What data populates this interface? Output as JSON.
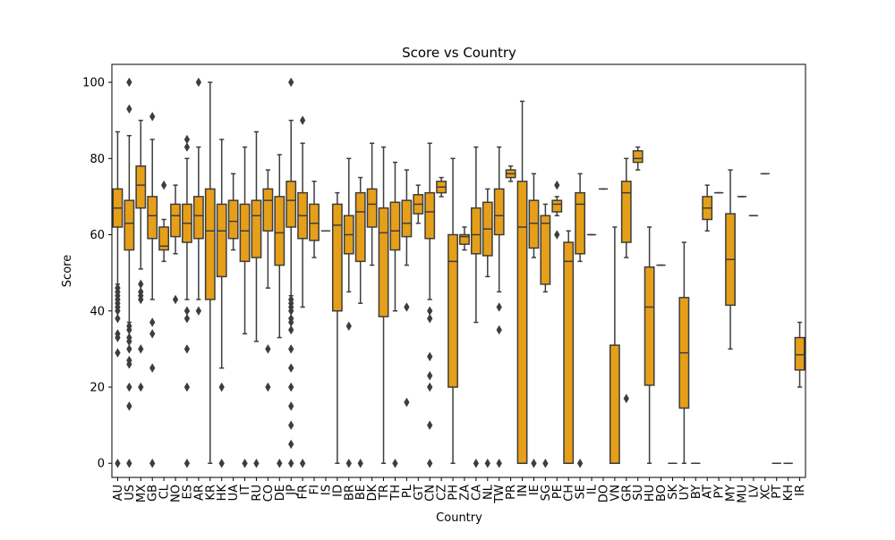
{
  "chart_data": {
    "type": "box",
    "title": "Score vs Country",
    "xlabel": "Country",
    "ylabel": "Score",
    "ylim": [
      -3.7,
      104.7
    ],
    "yticks": [
      0,
      20,
      40,
      60,
      80,
      100
    ],
    "grid": false,
    "colors": {
      "box_fill": "#E69F18",
      "line": "#3d3d3d",
      "axis": "#000000"
    },
    "categories": [
      {
        "label": "AU",
        "q1": 62,
        "median": 67,
        "q3": 72,
        "wlo": 47,
        "whi": 87,
        "outliers": [
          46,
          45,
          44,
          43,
          42,
          41,
          40,
          38,
          34,
          33,
          29,
          0
        ]
      },
      {
        "label": "US",
        "q1": 56,
        "median": 63,
        "q3": 69,
        "wlo": 37,
        "whi": 86,
        "outliers": [
          100,
          93,
          36,
          35,
          33,
          32,
          30,
          27,
          26,
          20,
          15,
          0
        ]
      },
      {
        "label": "MX",
        "q1": 67,
        "median": 73,
        "q3": 78,
        "wlo": 51,
        "whi": 90,
        "outliers": [
          47,
          45,
          44,
          43,
          30,
          20
        ]
      },
      {
        "label": "GB",
        "q1": 59,
        "median": 65,
        "q3": 70,
        "wlo": 43,
        "whi": 85,
        "outliers": [
          91,
          37,
          34,
          25,
          0
        ]
      },
      {
        "label": "CL",
        "q1": 56,
        "median": 57,
        "q3": 62,
        "wlo": 53,
        "whi": 64,
        "outliers": [
          73
        ]
      },
      {
        "label": "NO",
        "q1": 59.5,
        "median": 65,
        "q3": 68,
        "wlo": 55,
        "whi": 73,
        "outliers": [
          43
        ]
      },
      {
        "label": "ES",
        "q1": 58,
        "median": 63,
        "q3": 68,
        "wlo": 43,
        "whi": 80,
        "outliers": [
          85,
          83,
          40,
          38,
          30,
          20,
          0
        ]
      },
      {
        "label": "AR",
        "q1": 59,
        "median": 65,
        "q3": 70,
        "wlo": 43,
        "whi": 83,
        "outliers": [
          100,
          40
        ]
      },
      {
        "label": "KR",
        "q1": 43,
        "median": 61,
        "q3": 72,
        "wlo": 0,
        "whi": 100,
        "outliers": []
      },
      {
        "label": "HK",
        "q1": 49,
        "median": 61,
        "q3": 68,
        "wlo": 25,
        "whi": 85,
        "outliers": [
          20,
          0
        ]
      },
      {
        "label": "UA",
        "q1": 59,
        "median": 63.5,
        "q3": 69,
        "wlo": 56,
        "whi": 76,
        "outliers": []
      },
      {
        "label": "IT",
        "q1": 53,
        "median": 61,
        "q3": 68,
        "wlo": 34,
        "whi": 83,
        "outliers": [
          0
        ]
      },
      {
        "label": "RU",
        "q1": 54,
        "median": 65,
        "q3": 69,
        "wlo": 32,
        "whi": 87,
        "outliers": [
          0
        ]
      },
      {
        "label": "CO",
        "q1": 61,
        "median": 69,
        "q3": 72,
        "wlo": 46,
        "whi": 77,
        "outliers": [
          30,
          20
        ]
      },
      {
        "label": "DE",
        "q1": 52,
        "median": 60.5,
        "q3": 70,
        "wlo": 33,
        "whi": 81,
        "outliers": [
          0
        ]
      },
      {
        "label": "JP",
        "q1": 62,
        "median": 69,
        "q3": 74,
        "wlo": 44,
        "whi": 90,
        "outliers": [
          100,
          43,
          42,
          41,
          40,
          38,
          37,
          35,
          30,
          25,
          20,
          15,
          10,
          5,
          0
        ]
      },
      {
        "label": "FR",
        "q1": 59,
        "median": 65,
        "q3": 71,
        "wlo": 41,
        "whi": 84,
        "outliers": [
          90,
          0
        ]
      },
      {
        "label": "FI",
        "q1": 58.5,
        "median": 63,
        "q3": 68,
        "wlo": 54,
        "whi": 74,
        "outliers": []
      },
      {
        "label": "IS",
        "q1": 61,
        "median": 61,
        "q3": 61,
        "wlo": 61,
        "whi": 61,
        "outliers": []
      },
      {
        "label": "ID",
        "q1": 40,
        "median": 62.5,
        "q3": 68,
        "wlo": 0,
        "whi": 71,
        "outliers": []
      },
      {
        "label": "BR",
        "q1": 55,
        "median": 60,
        "q3": 65,
        "wlo": 45,
        "whi": 80,
        "outliers": [
          36,
          0
        ]
      },
      {
        "label": "BE",
        "q1": 53,
        "median": 66,
        "q3": 71,
        "wlo": 42,
        "whi": 75,
        "outliers": [
          0
        ]
      },
      {
        "label": "DK",
        "q1": 62,
        "median": 68,
        "q3": 72,
        "wlo": 52,
        "whi": 84,
        "outliers": []
      },
      {
        "label": "TR",
        "q1": 38.5,
        "median": 60.5,
        "q3": 67,
        "wlo": 0,
        "whi": 83,
        "outliers": []
      },
      {
        "label": "TH",
        "q1": 56,
        "median": 61,
        "q3": 68.5,
        "wlo": 40,
        "whi": 79,
        "outliers": [
          0
        ]
      },
      {
        "label": "PL",
        "q1": 59.5,
        "median": 63,
        "q3": 69,
        "wlo": 52,
        "whi": 77,
        "outliers": [
          41,
          16
        ]
      },
      {
        "label": "GT",
        "q1": 65.5,
        "median": 68,
        "q3": 70.5,
        "wlo": 63,
        "whi": 73,
        "outliers": []
      },
      {
        "label": "CN",
        "q1": 59,
        "median": 66,
        "q3": 71,
        "wlo": 43,
        "whi": 84,
        "outliers": [
          40,
          38,
          28,
          23,
          20,
          10,
          0
        ]
      },
      {
        "label": "CZ",
        "q1": 71,
        "median": 72.5,
        "q3": 74,
        "wlo": 70,
        "whi": 75,
        "outliers": []
      },
      {
        "label": "PH",
        "q1": 20,
        "median": 53,
        "q3": 60,
        "wlo": 0,
        "whi": 80,
        "outliers": []
      },
      {
        "label": "ZA",
        "q1": 57.5,
        "median": 59.5,
        "q3": 60,
        "wlo": 56,
        "whi": 62,
        "outliers": []
      },
      {
        "label": "CA",
        "q1": 55,
        "median": 60,
        "q3": 67,
        "wlo": 37,
        "whi": 83,
        "outliers": [
          0
        ]
      },
      {
        "label": "NL",
        "q1": 54.5,
        "median": 61.5,
        "q3": 68.5,
        "wlo": 49,
        "whi": 72,
        "outliers": [
          0
        ]
      },
      {
        "label": "TW",
        "q1": 60,
        "median": 65,
        "q3": 72,
        "wlo": 45,
        "whi": 83,
        "outliers": [
          41,
          35,
          0
        ]
      },
      {
        "label": "PR",
        "q1": 75,
        "median": 76,
        "q3": 77,
        "wlo": 74,
        "whi": 78,
        "outliers": []
      },
      {
        "label": "IN",
        "q1": 0,
        "median": 62,
        "q3": 74,
        "wlo": 0,
        "whi": 95,
        "outliers": []
      },
      {
        "label": "IE",
        "q1": 56.5,
        "median": 63,
        "q3": 69,
        "wlo": 54,
        "whi": 76,
        "outliers": [
          0
        ]
      },
      {
        "label": "SG",
        "q1": 47,
        "median": 63,
        "q3": 65,
        "wlo": 45,
        "whi": 68,
        "outliers": [
          0
        ]
      },
      {
        "label": "PE",
        "q1": 66,
        "median": 68,
        "q3": 69,
        "wlo": 65,
        "whi": 70,
        "outliers": [
          73,
          60
        ]
      },
      {
        "label": "CH",
        "q1": 0,
        "median": 53,
        "q3": 58,
        "wlo": 0,
        "whi": 61,
        "outliers": []
      },
      {
        "label": "SE",
        "q1": 55,
        "median": 68,
        "q3": 71,
        "wlo": 53,
        "whi": 76,
        "outliers": [
          0
        ]
      },
      {
        "label": "IL",
        "q1": 60,
        "median": 60,
        "q3": 60,
        "wlo": 60,
        "whi": 60,
        "outliers": []
      },
      {
        "label": "DO",
        "q1": 72,
        "median": 72,
        "q3": 72,
        "wlo": 72,
        "whi": 72,
        "outliers": []
      },
      {
        "label": "VN",
        "q1": 0,
        "median": 0,
        "q3": 31,
        "wlo": 0,
        "whi": 62,
        "outliers": []
      },
      {
        "label": "GR",
        "q1": 58,
        "median": 71,
        "q3": 74,
        "wlo": 54,
        "whi": 80,
        "outliers": [
          17
        ]
      },
      {
        "label": "SU",
        "q1": 79,
        "median": 80,
        "q3": 82,
        "wlo": 77,
        "whi": 83,
        "outliers": []
      },
      {
        "label": "HU",
        "q1": 20.5,
        "median": 41,
        "q3": 51.5,
        "wlo": 0,
        "whi": 62,
        "outliers": []
      },
      {
        "label": "BO",
        "q1": 52,
        "median": 52,
        "q3": 52,
        "wlo": 52,
        "whi": 52,
        "outliers": []
      },
      {
        "label": "SK",
        "q1": 0,
        "median": 0,
        "q3": 0,
        "wlo": 0,
        "whi": 0,
        "outliers": []
      },
      {
        "label": "UY",
        "q1": 14.5,
        "median": 29,
        "q3": 43.5,
        "wlo": 0,
        "whi": 58,
        "outliers": []
      },
      {
        "label": "BY",
        "q1": 0,
        "median": 0,
        "q3": 0,
        "wlo": 0,
        "whi": 0,
        "outliers": []
      },
      {
        "label": "AT",
        "q1": 64,
        "median": 67,
        "q3": 70,
        "wlo": 61,
        "whi": 73,
        "outliers": []
      },
      {
        "label": "PY",
        "q1": 71,
        "median": 71,
        "q3": 71,
        "wlo": 71,
        "whi": 71,
        "outliers": []
      },
      {
        "label": "MY",
        "q1": 41.5,
        "median": 53.5,
        "q3": 65.5,
        "wlo": 30,
        "whi": 77,
        "outliers": []
      },
      {
        "label": "MU",
        "q1": 70,
        "median": 70,
        "q3": 70,
        "wlo": 70,
        "whi": 70,
        "outliers": []
      },
      {
        "label": "LV",
        "q1": 65,
        "median": 65,
        "q3": 65,
        "wlo": 65,
        "whi": 65,
        "outliers": []
      },
      {
        "label": "XC",
        "q1": 76,
        "median": 76,
        "q3": 76,
        "wlo": 76,
        "whi": 76,
        "outliers": []
      },
      {
        "label": "PT",
        "q1": 0,
        "median": 0,
        "q3": 0,
        "wlo": 0,
        "whi": 0,
        "outliers": []
      },
      {
        "label": "KH",
        "q1": 0,
        "median": 0,
        "q3": 0,
        "wlo": 0,
        "whi": 0,
        "outliers": []
      },
      {
        "label": "IR",
        "q1": 24.5,
        "median": 28.5,
        "q3": 33,
        "wlo": 20,
        "whi": 37,
        "outliers": []
      }
    ]
  }
}
